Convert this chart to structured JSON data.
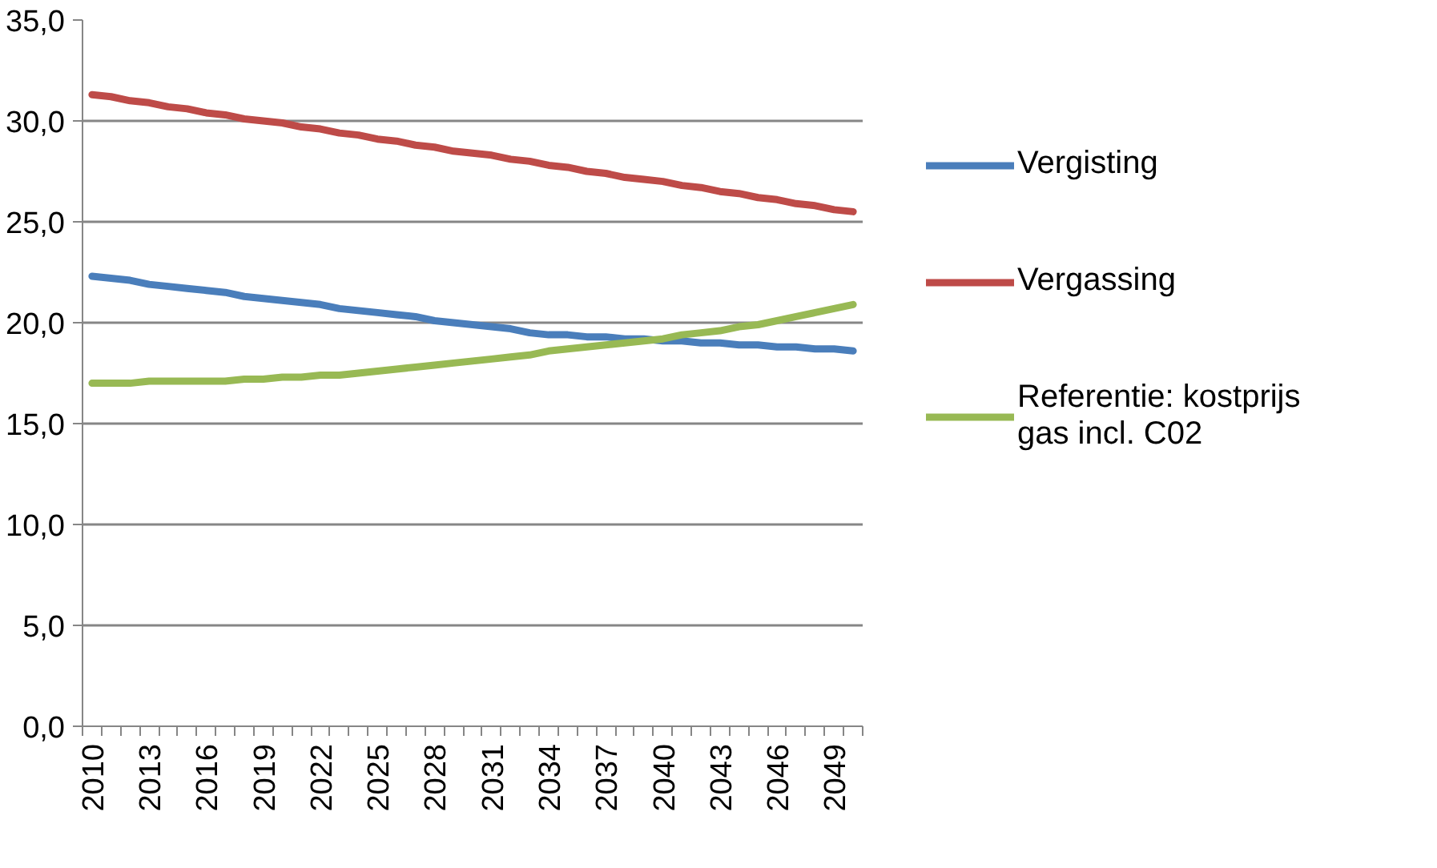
{
  "chart_data": {
    "type": "line",
    "categories": [
      "2010",
      null,
      null,
      "2013",
      null,
      null,
      "2016",
      null,
      null,
      "2019",
      null,
      null,
      "2022",
      null,
      null,
      "2025",
      null,
      null,
      "2028",
      null,
      null,
      "2031",
      null,
      null,
      "2034",
      null,
      null,
      "2037",
      null,
      null,
      "2040",
      null,
      null,
      "2043",
      null,
      null,
      "2046",
      null,
      null,
      "2049",
      null
    ],
    "series": [
      {
        "name": "Vergisting",
        "color": "#4a7ebb",
        "values": [
          22.3,
          22.2,
          22.1,
          21.9,
          21.8,
          21.7,
          21.6,
          21.5,
          21.3,
          21.2,
          21.1,
          21.0,
          20.9,
          20.7,
          20.6,
          20.5,
          20.4,
          20.3,
          20.1,
          20.0,
          19.9,
          19.8,
          19.7,
          19.5,
          19.4,
          19.4,
          19.3,
          19.3,
          19.2,
          19.2,
          19.1,
          19.1,
          19.0,
          19.0,
          18.9,
          18.9,
          18.8,
          18.8,
          18.7,
          18.7,
          18.6
        ]
      },
      {
        "name": "Vergassing",
        "color": "#be4b48",
        "values": [
          31.3,
          31.2,
          31.0,
          30.9,
          30.7,
          30.6,
          30.4,
          30.3,
          30.1,
          30.0,
          29.9,
          29.7,
          29.6,
          29.4,
          29.3,
          29.1,
          29.0,
          28.8,
          28.7,
          28.5,
          28.4,
          28.3,
          28.1,
          28.0,
          27.8,
          27.7,
          27.5,
          27.4,
          27.2,
          27.1,
          27.0,
          26.8,
          26.7,
          26.5,
          26.4,
          26.2,
          26.1,
          25.9,
          25.8,
          25.6,
          25.5
        ]
      },
      {
        "name": "Referentie: kostprijs gas incl. C02",
        "color": "#98b954",
        "values": [
          17.0,
          17.0,
          17.0,
          17.1,
          17.1,
          17.1,
          17.1,
          17.1,
          17.2,
          17.2,
          17.3,
          17.3,
          17.4,
          17.4,
          17.5,
          17.6,
          17.7,
          17.8,
          17.9,
          18.0,
          18.1,
          18.2,
          18.3,
          18.4,
          18.6,
          18.7,
          18.8,
          18.9,
          19.0,
          19.1,
          19.2,
          19.4,
          19.5,
          19.6,
          19.8,
          19.9,
          20.1,
          20.3,
          20.5,
          20.7,
          20.9
        ]
      }
    ],
    "ylim": [
      0,
      35
    ],
    "yticks": [
      {
        "value": 0,
        "label": "0,0"
      },
      {
        "value": 5,
        "label": "5,0"
      },
      {
        "value": 10,
        "label": "10,0"
      },
      {
        "value": 15,
        "label": "15,0"
      },
      {
        "value": 20,
        "label": "20,0"
      },
      {
        "value": 25,
        "label": "25,0"
      },
      {
        "value": 30,
        "label": "30,0"
      },
      {
        "value": 35,
        "label": "35,0"
      }
    ],
    "grid": "y",
    "legend": "right",
    "marker": "none",
    "line_style": "solid"
  }
}
